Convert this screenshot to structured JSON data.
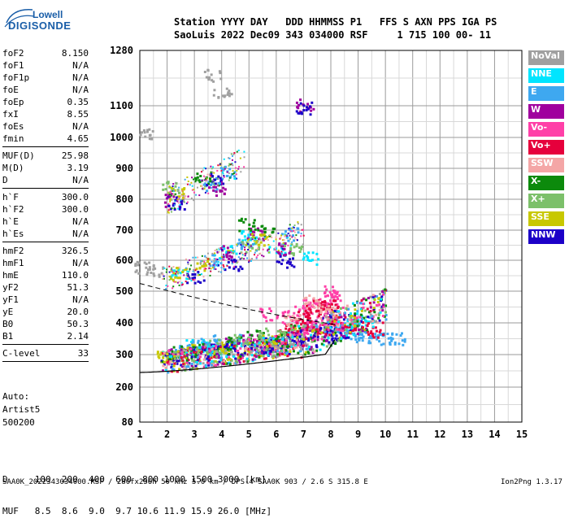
{
  "logo": {
    "brand": "Lowell",
    "product": "DIGISONDE"
  },
  "header": {
    "line1": "Station YYYY DAY   DDD HHMMSS P1   FFS S AXN PPS IGA PS",
    "line2": "SaoLuis 2022 Dec09 343 034000 RSF     1 715 100 00- 11"
  },
  "params_groups": [
    [
      {
        "label": "foF2",
        "value": "8.150"
      },
      {
        "label": "foF1",
        "value": "N/A"
      },
      {
        "label": "foF1p",
        "value": "N/A"
      },
      {
        "label": "foE",
        "value": "N/A"
      },
      {
        "label": "foEp",
        "value": "0.35"
      },
      {
        "label": "fxI",
        "value": "8.55"
      },
      {
        "label": "foEs",
        "value": "N/A"
      },
      {
        "label": "fmin",
        "value": "4.65"
      }
    ],
    [
      {
        "label": "MUF(D)",
        "value": "25.98"
      },
      {
        "label": "M(D)",
        "value": "3.19"
      },
      {
        "label": "D",
        "value": "N/A"
      }
    ],
    [
      {
        "label": "h`F",
        "value": "300.0"
      },
      {
        "label": "h`F2",
        "value": "300.0"
      },
      {
        "label": "h`E",
        "value": "N/A"
      },
      {
        "label": "h`Es",
        "value": "N/A"
      }
    ],
    [
      {
        "label": "hmF2",
        "value": "326.5"
      },
      {
        "label": "hmF1",
        "value": "N/A"
      },
      {
        "label": "hmE",
        "value": "110.0"
      },
      {
        "label": "yF2",
        "value": "51.3"
      },
      {
        "label": "yF1",
        "value": "N/A"
      },
      {
        "label": "yE",
        "value": "20.0"
      },
      {
        "label": "B0",
        "value": "50.3"
      },
      {
        "label": "B1",
        "value": "2.14"
      }
    ],
    [
      {
        "label": "C-level",
        "value": "33"
      }
    ]
  ],
  "auto": {
    "line1": "Auto:",
    "line2": "Artist5",
    "line3": "500200"
  },
  "legend": [
    {
      "label": "NoVal",
      "color": "#a0a0a0"
    },
    {
      "label": "NNE",
      "color": "#00e5ff"
    },
    {
      "label": "E",
      "color": "#3ea8f0"
    },
    {
      "label": "W",
      "color": "#a0009e"
    },
    {
      "label": "Vo-",
      "color": "#ff40a8"
    },
    {
      "label": "Vo+",
      "color": "#e6003c"
    },
    {
      "label": "SSW",
      "color": "#f4a6a6"
    },
    {
      "label": "X-",
      "color": "#0c8a0c"
    },
    {
      "label": "X+",
      "color": "#7cc06a"
    },
    {
      "label": "SSE",
      "color": "#c8c800"
    },
    {
      "label": "NNW",
      "color": "#1c00c8"
    }
  ],
  "muf_table": {
    "line1": "D     100  200  400  600  800 1000 1500 3000 [km]",
    "line2": "MUF   8.5  8.6  9.0  9.7 10.6 11.9 15.9 26.0 [MHz]"
  },
  "footer": {
    "left": "SAA0K_2022343034000.RSF / 280fx256h 50 kHz 5.0 km / DPS-4 SAA0K 903 / 2.6 S 315.8 E",
    "right": "Ion2Png 1.3.17"
  },
  "chart_data": {
    "type": "scatter",
    "xlim": [
      1,
      15
    ],
    "ylim": [
      80,
      1280
    ],
    "x_ticks": [
      1,
      2,
      3,
      4,
      5,
      6,
      7,
      8,
      9,
      10,
      11,
      12,
      13,
      14,
      15
    ],
    "y_ticks": [
      80,
      200,
      300,
      400,
      500,
      600,
      700,
      800,
      900,
      1000,
      1100,
      1280
    ],
    "grid": true,
    "series": [
      {
        "name": "NNE",
        "color": "#00e5ff",
        "points": [
          [
            3.0,
            330
          ],
          [
            3.5,
            325
          ],
          [
            4.0,
            310
          ],
          [
            4.5,
            340
          ],
          [
            5.5,
            320
          ],
          [
            6.2,
            335
          ],
          [
            8.3,
            375
          ],
          [
            8.7,
            400
          ],
          [
            9.1,
            395
          ],
          [
            4.2,
            630
          ],
          [
            5.0,
            680
          ],
          [
            6.0,
            640
          ],
          [
            7.2,
            610
          ],
          [
            2.4,
            560
          ]
        ]
      },
      {
        "name": "E",
        "color": "#3ea8f0",
        "points": [
          [
            2.6,
            320
          ],
          [
            3.2,
            335
          ],
          [
            4.0,
            345
          ],
          [
            4.6,
            350
          ],
          [
            5.2,
            330
          ],
          [
            5.8,
            340
          ],
          [
            6.4,
            360
          ],
          [
            8.2,
            385
          ],
          [
            8.8,
            370
          ],
          [
            9.2,
            360
          ],
          [
            9.6,
            355
          ],
          [
            10.0,
            350
          ],
          [
            10.4,
            352
          ],
          [
            3.7,
            600
          ],
          [
            4.8,
            660
          ],
          [
            6.5,
            690
          ],
          [
            3.6,
            850
          ],
          [
            4.2,
            890
          ]
        ]
      },
      {
        "name": "W",
        "color": "#a0009e",
        "points": [
          [
            2.2,
            300
          ],
          [
            3.3,
            320
          ],
          [
            4.3,
            335
          ],
          [
            5.0,
            345
          ],
          [
            6.0,
            330
          ],
          [
            6.8,
            350
          ],
          [
            7.5,
            365
          ],
          [
            8.0,
            420
          ],
          [
            7.2,
            395
          ],
          [
            4.1,
            630
          ],
          [
            5.2,
            690
          ],
          [
            6.2,
            640
          ],
          [
            2.2,
            800
          ],
          [
            3.8,
            830
          ],
          [
            7.0,
            1105
          ]
        ]
      },
      {
        "name": "Vo-",
        "color": "#ff40a8",
        "points": [
          [
            6.5,
            420
          ],
          [
            6.9,
            440
          ],
          [
            7.2,
            460
          ],
          [
            7.5,
            450
          ],
          [
            7.8,
            470
          ],
          [
            8.0,
            480
          ],
          [
            7.0,
            390
          ],
          [
            7.4,
            410
          ],
          [
            6.7,
            380
          ],
          [
            8.1,
            400
          ],
          [
            7.9,
            500
          ],
          [
            5.7,
            430
          ]
        ]
      },
      {
        "name": "Vo+",
        "color": "#e6003c",
        "points": [
          [
            6.8,
            400
          ],
          [
            7.1,
            430
          ],
          [
            7.4,
            455
          ],
          [
            7.7,
            440
          ],
          [
            8.0,
            460
          ],
          [
            7.6,
            385
          ],
          [
            6.4,
            375
          ],
          [
            8.2,
            420
          ],
          [
            9.0,
            395
          ],
          [
            9.6,
            375
          ]
        ]
      },
      {
        "name": "SSW",
        "color": "#f4a6a6",
        "points": [
          [
            7.8,
            440
          ],
          [
            8.1,
            430
          ],
          [
            7.3,
            470
          ],
          [
            6.6,
            410
          ]
        ]
      },
      {
        "name": "X-",
        "color": "#0c8a0c",
        "points": [
          [
            2.4,
            310
          ],
          [
            3.1,
            320
          ],
          [
            4.4,
            340
          ],
          [
            5.2,
            360
          ],
          [
            6.1,
            355
          ],
          [
            5.6,
            700
          ],
          [
            4.9,
            720
          ],
          [
            3.3,
            870
          ]
        ]
      },
      {
        "name": "X+",
        "color": "#7cc06a",
        "points": [
          [
            2.1,
            295
          ],
          [
            3.8,
            330
          ],
          [
            4.7,
            345
          ],
          [
            5.5,
            365
          ],
          [
            6.3,
            370
          ],
          [
            5.0,
            650
          ],
          [
            6.6,
            640
          ],
          [
            2.1,
            840
          ]
        ]
      },
      {
        "name": "SSE",
        "color": "#c8c800",
        "points": [
          [
            1.9,
            300
          ],
          [
            2.8,
            315
          ],
          [
            4.0,
            325
          ],
          [
            5.6,
            345
          ],
          [
            2.4,
            560
          ],
          [
            3.3,
            590
          ],
          [
            5.4,
            670
          ],
          [
            2.3,
            820
          ]
        ]
      },
      {
        "name": "NNW",
        "color": "#1c00c8",
        "points": [
          [
            2.0,
            290
          ],
          [
            2.9,
            305
          ],
          [
            3.6,
            315
          ],
          [
            4.5,
            320
          ],
          [
            5.3,
            325
          ],
          [
            5.9,
            335
          ],
          [
            6.5,
            345
          ],
          [
            7.1,
            355
          ],
          [
            7.8,
            370
          ],
          [
            8.3,
            360
          ],
          [
            3.0,
            550
          ],
          [
            4.4,
            590
          ],
          [
            6.3,
            600
          ],
          [
            2.3,
            790
          ],
          [
            3.7,
            870
          ],
          [
            7.0,
            1095
          ]
        ]
      },
      {
        "name": "NoVal",
        "color": "#a0a0a0",
        "points": [
          [
            1.1,
            580
          ],
          [
            1.5,
            570
          ],
          [
            3.6,
            1200
          ],
          [
            4.0,
            1150
          ],
          [
            1.3,
            1010
          ]
        ]
      }
    ]
  }
}
